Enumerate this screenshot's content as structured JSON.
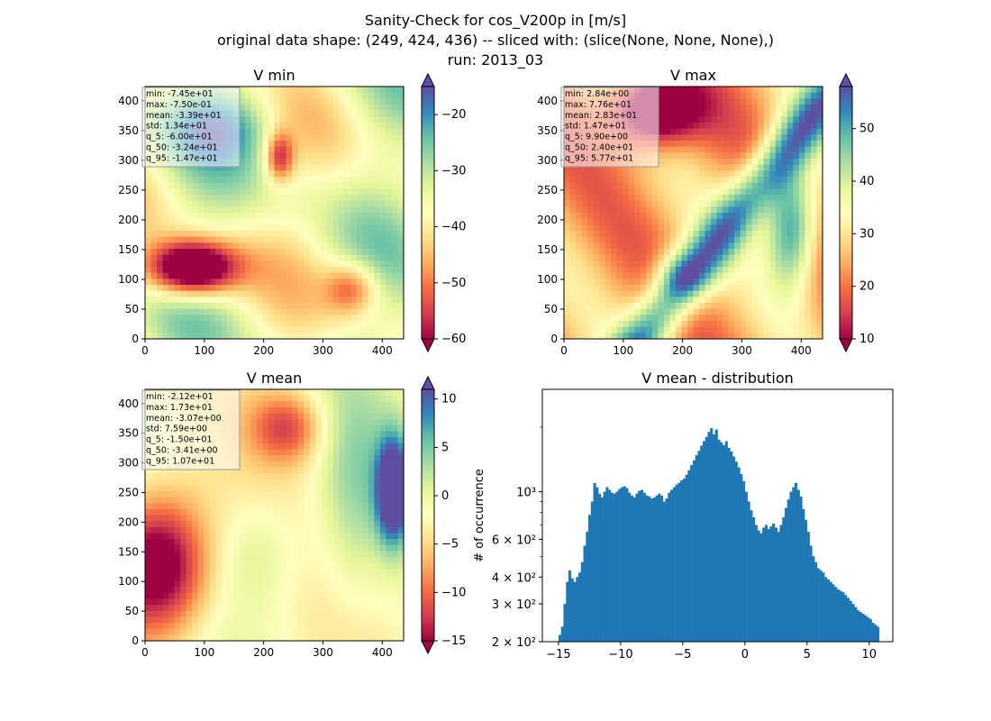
{
  "figure": {
    "suptitle_line1": "Sanity-Check for cos_V200p in [m/s]",
    "suptitle_line2": "original data shape: (249, 424, 436) -- sliced with: (slice(None, None, None),)",
    "suptitle_line3": "run: 2013_03"
  },
  "colormap": {
    "name": "Spectral",
    "stops": [
      "#9e0142",
      "#d53e4f",
      "#f46d43",
      "#fdae61",
      "#fee08b",
      "#ffffbf",
      "#e6f598",
      "#abdda4",
      "#66c2a5",
      "#3288bd",
      "#5e4fa2"
    ]
  },
  "chart_data": [
    {
      "type": "heatmap",
      "title": "V min",
      "x_ticks": [
        "0",
        "100",
        "200",
        "300",
        "400"
      ],
      "y_ticks": [
        "0",
        "50",
        "100",
        "150",
        "200",
        "250",
        "300",
        "350",
        "400"
      ],
      "xlim": [
        0,
        436
      ],
      "ylim": [
        0,
        424
      ],
      "colorbar": {
        "range": [
          -60,
          -15
        ],
        "ticks": [
          "−20",
          "−30",
          "−40",
          "−50",
          "−60"
        ],
        "tick_values": [
          -20,
          -30,
          -40,
          -50,
          -60
        ],
        "extend": "both"
      },
      "stats": [
        "min: -7.45e+01",
        "max: -7.50e-01",
        "mean: -3.39e+01",
        "std: 1.34e+01",
        "q_5: -6.00e+01",
        "q_50: -3.24e+01",
        "q_95: -1.47e+01"
      ]
    },
    {
      "type": "heatmap",
      "title": "V max",
      "x_ticks": [
        "0",
        "100",
        "200",
        "300",
        "400"
      ],
      "y_ticks": [
        "0",
        "50",
        "100",
        "150",
        "200",
        "250",
        "300",
        "350",
        "400"
      ],
      "xlim": [
        0,
        436
      ],
      "ylim": [
        0,
        424
      ],
      "colorbar": {
        "range": [
          10,
          58
        ],
        "ticks": [
          "50",
          "40",
          "30",
          "20",
          "10"
        ],
        "tick_values": [
          50,
          40,
          30,
          20,
          10
        ],
        "extend": "both"
      },
      "stats": [
        "min: 2.84e+00",
        "max: 7.76e+01",
        "mean: 2.83e+01",
        "std: 1.47e+01",
        "q_5: 9.90e+00",
        "q_50: 2.40e+01",
        "q_95: 5.77e+01"
      ]
    },
    {
      "type": "heatmap",
      "title": "V mean",
      "x_ticks": [
        "0",
        "100",
        "200",
        "300",
        "400"
      ],
      "y_ticks": [
        "0",
        "50",
        "100",
        "150",
        "200",
        "250",
        "300",
        "350",
        "400"
      ],
      "xlim": [
        0,
        436
      ],
      "ylim": [
        0,
        424
      ],
      "colorbar": {
        "range": [
          -15,
          11
        ],
        "ticks": [
          "10",
          "5",
          "0",
          "−5",
          "−10",
          "−15"
        ],
        "tick_values": [
          10,
          5,
          0,
          -5,
          -10,
          -15
        ],
        "extend": "both"
      },
      "stats": [
        "min: -2.12e+01",
        "max: 1.73e+01",
        "mean: -3.07e+00",
        "std: 7.59e+00",
        "q_5: -1.50e+01",
        "q_50: -3.41e+00",
        "q_95: 1.07e+01"
      ]
    },
    {
      "type": "bar",
      "title": "V mean - distribution",
      "xlabel": "",
      "ylabel": "# of occurrence",
      "xlim": [
        -16.3,
        11.9
      ],
      "ylim": [
        200,
        3000
      ],
      "yscale": "log",
      "x_ticks": [
        "−15",
        "−10",
        "−5",
        "0",
        "5",
        "10"
      ],
      "x_tick_values": [
        -15,
        -10,
        -5,
        0,
        5,
        10
      ],
      "y_ticks": [
        "2 × 10²",
        "3 × 10²",
        "4 × 10²",
        "6 × 10²",
        "10³"
      ],
      "y_tick_values": [
        200,
        300,
        400,
        600,
        1000
      ],
      "color": "#1f77b4",
      "bins": [
        [
          -15.0,
          215
        ],
        [
          -14.8,
          235
        ],
        [
          -14.6,
          300
        ],
        [
          -14.4,
          380
        ],
        [
          -14.2,
          430
        ],
        [
          -14.0,
          395
        ],
        [
          -13.8,
          380
        ],
        [
          -13.6,
          400
        ],
        [
          -13.4,
          420
        ],
        [
          -13.2,
          470
        ],
        [
          -13.0,
          560
        ],
        [
          -12.8,
          650
        ],
        [
          -12.6,
          780
        ],
        [
          -12.4,
          900
        ],
        [
          -12.2,
          1100
        ],
        [
          -12.0,
          1050
        ],
        [
          -11.8,
          980
        ],
        [
          -11.6,
          940
        ],
        [
          -11.4,
          1000
        ],
        [
          -11.2,
          1050
        ],
        [
          -11.0,
          1020
        ],
        [
          -10.8,
          990
        ],
        [
          -10.6,
          980
        ],
        [
          -10.4,
          1000
        ],
        [
          -10.2,
          1030
        ],
        [
          -10.0,
          1050
        ],
        [
          -9.8,
          1060
        ],
        [
          -9.6,
          1040
        ],
        [
          -9.4,
          990
        ],
        [
          -9.2,
          960
        ],
        [
          -9.0,
          940
        ],
        [
          -8.8,
          980
        ],
        [
          -8.6,
          1010
        ],
        [
          -8.4,
          1020
        ],
        [
          -8.2,
          990
        ],
        [
          -8.0,
          960
        ],
        [
          -7.8,
          950
        ],
        [
          -7.6,
          930
        ],
        [
          -7.4,
          940
        ],
        [
          -7.2,
          960
        ],
        [
          -7.0,
          980
        ],
        [
          -6.8,
          960
        ],
        [
          -6.6,
          900
        ],
        [
          -6.4,
          930
        ],
        [
          -6.2,
          990
        ],
        [
          -6.0,
          1020
        ],
        [
          -5.8,
          1050
        ],
        [
          -5.6,
          1080
        ],
        [
          -5.4,
          1100
        ],
        [
          -5.2,
          1130
        ],
        [
          -5.0,
          1150
        ],
        [
          -4.8,
          1200
        ],
        [
          -4.6,
          1260
        ],
        [
          -4.4,
          1330
        ],
        [
          -4.2,
          1400
        ],
        [
          -4.0,
          1480
        ],
        [
          -3.8,
          1550
        ],
        [
          -3.6,
          1640
        ],
        [
          -3.4,
          1720
        ],
        [
          -3.2,
          1800
        ],
        [
          -3.0,
          1900
        ],
        [
          -2.8,
          1980
        ],
        [
          -2.6,
          1850
        ],
        [
          -2.4,
          1950
        ],
        [
          -2.2,
          1750
        ],
        [
          -2.0,
          1700
        ],
        [
          -1.8,
          1650
        ],
        [
          -1.6,
          1720
        ],
        [
          -1.4,
          1600
        ],
        [
          -1.2,
          1540
        ],
        [
          -1.0,
          1460
        ],
        [
          -0.8,
          1380
        ],
        [
          -0.6,
          1300
        ],
        [
          -0.4,
          1210
        ],
        [
          -0.2,
          1120
        ],
        [
          0.0,
          1000
        ],
        [
          0.2,
          900
        ],
        [
          0.4,
          820
        ],
        [
          0.6,
          760
        ],
        [
          0.8,
          700
        ],
        [
          1.0,
          660
        ],
        [
          1.2,
          640
        ],
        [
          1.4,
          680
        ],
        [
          1.6,
          700
        ],
        [
          1.8,
          670
        ],
        [
          2.0,
          690
        ],
        [
          2.2,
          710
        ],
        [
          2.4,
          680
        ],
        [
          2.6,
          650
        ],
        [
          2.8,
          700
        ],
        [
          3.0,
          760
        ],
        [
          3.2,
          840
        ],
        [
          3.4,
          920
        ],
        [
          3.6,
          1000
        ],
        [
          3.8,
          1050
        ],
        [
          4.0,
          1100
        ],
        [
          4.2,
          1020
        ],
        [
          4.4,
          950
        ],
        [
          4.6,
          830
        ],
        [
          4.8,
          740
        ],
        [
          5.0,
          650
        ],
        [
          5.2,
          560
        ],
        [
          5.4,
          500
        ],
        [
          5.6,
          470
        ],
        [
          5.8,
          440
        ],
        [
          6.0,
          430
        ],
        [
          6.2,
          420
        ],
        [
          6.4,
          400
        ],
        [
          6.6,
          390
        ],
        [
          6.8,
          380
        ],
        [
          7.0,
          370
        ],
        [
          7.2,
          360
        ],
        [
          7.4,
          350
        ],
        [
          7.6,
          345
        ],
        [
          7.8,
          340
        ],
        [
          8.0,
          330
        ],
        [
          8.2,
          320
        ],
        [
          8.4,
          310
        ],
        [
          8.6,
          300
        ],
        [
          8.8,
          290
        ],
        [
          9.0,
          280
        ],
        [
          9.2,
          275
        ],
        [
          9.4,
          270
        ],
        [
          9.6,
          265
        ],
        [
          9.8,
          260
        ],
        [
          10.0,
          255
        ],
        [
          10.2,
          245
        ],
        [
          10.4,
          240
        ],
        [
          10.6,
          235
        ]
      ]
    }
  ]
}
